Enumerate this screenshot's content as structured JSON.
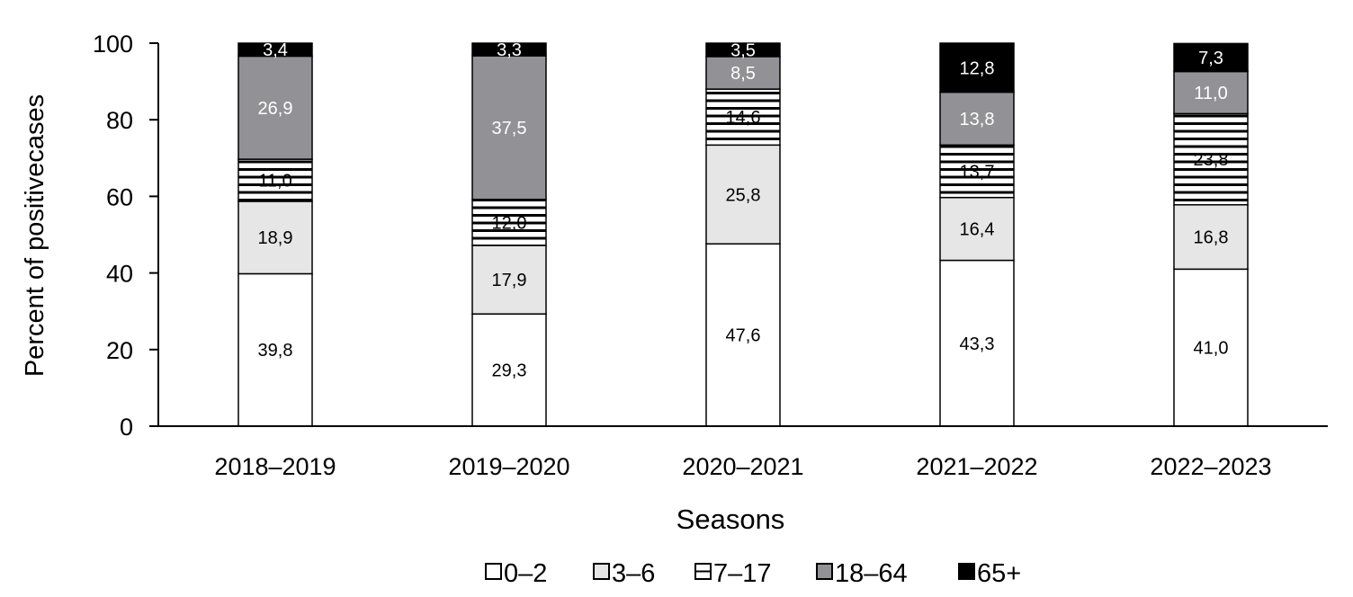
{
  "chart_data": {
    "type": "bar",
    "stacked": true,
    "title": "",
    "xlabel": "Seasons",
    "ylabel": "Percent of positivecases",
    "ylim": [
      0,
      100
    ],
    "yticks": [
      0,
      20,
      40,
      60,
      80,
      100
    ],
    "grid": false,
    "legend_position": "bottom",
    "decimal_separator": ",",
    "categories": [
      "2018–2019",
      "2019–2020",
      "2020–2021",
      "2021–2022",
      "2022–2023"
    ],
    "series": [
      {
        "name": "0–2",
        "values": [
          39.8,
          29.3,
          47.6,
          43.3,
          41.0
        ],
        "fill": "#ffffff",
        "pattern": "none",
        "label_color": "#000000"
      },
      {
        "name": "3–6",
        "values": [
          18.9,
          17.9,
          25.8,
          16.4,
          16.8
        ],
        "fill": "#e6e6e6",
        "pattern": "none",
        "label_color": "#000000"
      },
      {
        "name": "7–17",
        "values": [
          11.0,
          12.0,
          14.6,
          13.7,
          23.8
        ],
        "fill": "#ffffff",
        "pattern": "horizontal-stripes",
        "label_color": "#000000"
      },
      {
        "name": "18–64",
        "values": [
          26.9,
          37.5,
          8.5,
          13.8,
          11.0
        ],
        "fill": "#929296",
        "pattern": "none",
        "label_color": "#ffffff"
      },
      {
        "name": "65+",
        "values": [
          3.4,
          3.3,
          3.5,
          12.8,
          7.3
        ],
        "fill": "#000000",
        "pattern": "none",
        "label_color": "#ffffff"
      }
    ]
  }
}
